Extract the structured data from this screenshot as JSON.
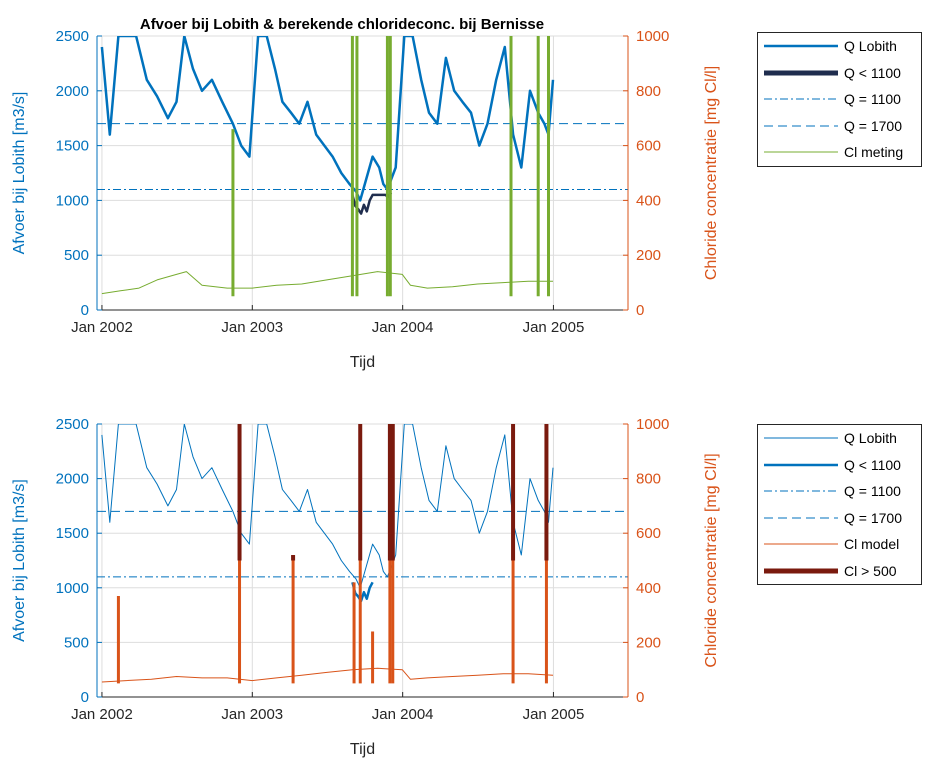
{
  "figure_title": "Afvoer bij Lobith & berekende chlorideconc. bij Bernisse",
  "colors": {
    "q_lobith": "#0072BD",
    "q_low": "#1F2D4E",
    "cl_meting": "#77AC30",
    "cl_model": "#D95319",
    "cl_high": "#7A1A0E",
    "grid": "#DDDDDD",
    "axis": "#262626"
  },
  "chart_data": [
    {
      "type": "line",
      "title": "Afvoer bij Lobith & berekende chlorideconc. bij Bernisse",
      "xlabel": "Tijd",
      "ylabel_left": "Afvoer bij Lobith [m3/s]",
      "ylabel_right": "Chloride concentratie [mg Cl/l]",
      "xlim": [
        "2001-12-20",
        "2005-07-01"
      ],
      "ylim_left": [
        0,
        2500
      ],
      "ylim_right": [
        0,
        1000
      ],
      "x_ticks": [
        "Jan 2002",
        "Jan 2003",
        "Jan 2004",
        "Jan 2005"
      ],
      "y_ticks_left": [
        "0",
        "500",
        "1000",
        "1500",
        "2000",
        "2500"
      ],
      "y_ticks_right": [
        "0",
        "200",
        "400",
        "600",
        "800",
        "1000"
      ],
      "grid": true,
      "legend_position": "outside-right",
      "series": [
        {
          "name": "Q Lobith",
          "axis": "left",
          "style": "solid-thick",
          "x": [
            "2002-01-01",
            "2002-01-20",
            "2002-02-10",
            "2002-03-01",
            "2002-03-25",
            "2002-04-20",
            "2002-05-15",
            "2002-06-10",
            "2002-07-01",
            "2002-07-20",
            "2002-08-10",
            "2002-09-01",
            "2002-09-25",
            "2002-10-20",
            "2002-11-15",
            "2002-12-05",
            "2002-12-25",
            "2003-01-15",
            "2003-02-05",
            "2003-02-25",
            "2003-03-15",
            "2003-04-05",
            "2003-04-25",
            "2003-05-15",
            "2003-06-05",
            "2003-06-25",
            "2003-07-15",
            "2003-08-05",
            "2003-08-25",
            "2003-09-10",
            "2003-09-20",
            "2003-10-05",
            "2003-10-20",
            "2003-11-05",
            "2003-11-15",
            "2003-11-25",
            "2003-12-05",
            "2003-12-15",
            "2004-01-05",
            "2004-01-25",
            "2004-02-15",
            "2004-03-05",
            "2004-03-25",
            "2004-04-15",
            "2004-05-05",
            "2004-05-25",
            "2004-06-15",
            "2004-07-05",
            "2004-07-25",
            "2004-08-15",
            "2004-09-05",
            "2004-09-25",
            "2004-10-15",
            "2004-11-05",
            "2004-11-25",
            "2004-12-10",
            "2004-12-20",
            "2004-12-31"
          ],
          "y": [
            2400,
            1600,
            2500,
            2500,
            2500,
            2100,
            1950,
            1750,
            1900,
            2500,
            2200,
            2000,
            2100,
            1900,
            1700,
            1500,
            1400,
            2500,
            2500,
            2200,
            1900,
            1800,
            1700,
            1900,
            1600,
            1500,
            1400,
            1250,
            1150,
            1080,
            1000,
            1200,
            1400,
            1300,
            1150,
            1100,
            1200,
            1300,
            2500,
            2500,
            2100,
            1800,
            1700,
            2300,
            2000,
            1900,
            1800,
            1500,
            1700,
            2100,
            2400,
            1600,
            1300,
            2000,
            1800,
            1700,
            1600,
            2100
          ]
        },
        {
          "name": "Q < 1100",
          "axis": "left",
          "style": "solid-thick",
          "x": [
            "2003-09-01",
            "2003-09-08",
            "2003-09-15",
            "2003-09-22",
            "2003-09-29",
            "2003-10-06",
            "2003-10-13",
            "2003-10-20",
            "2003-11-20",
            "2003-11-27",
            "2003-12-04"
          ],
          "y": [
            1050,
            950,
            920,
            880,
            960,
            900,
            1000,
            1050,
            1050,
            1030,
            1070
          ]
        },
        {
          "name": "Q = 1100",
          "axis": "left",
          "style": "dashdot",
          "value": 1100
        },
        {
          "name": "Q = 1700",
          "axis": "left",
          "style": "dashed",
          "value": 1700
        },
        {
          "name": "Cl meting",
          "axis": "right",
          "style": "solid",
          "x": [
            "2002-01-01",
            "2002-02-15",
            "2002-04-01",
            "2002-05-15",
            "2002-07-01",
            "2002-07-25",
            "2002-09-01",
            "2002-11-01",
            "2003-01-01",
            "2003-03-01",
            "2003-05-01",
            "2003-07-01",
            "2003-09-01",
            "2003-11-01",
            "2003-12-31",
            "2004-01-20",
            "2004-03-01",
            "2004-05-01",
            "2004-07-01",
            "2004-09-01",
            "2004-11-01",
            "2004-12-31"
          ],
          "y": [
            60,
            70,
            80,
            110,
            130,
            140,
            90,
            80,
            80,
            90,
            95,
            110,
            125,
            140,
            130,
            90,
            80,
            85,
            95,
            100,
            105,
            105
          ],
          "spikes": [
            {
              "x": "2002-11-15",
              "y": 660
            },
            {
              "x": "2003-09-01",
              "y": 1000
            },
            {
              "x": "2003-09-12",
              "y": 1000
            },
            {
              "x": "2003-11-25",
              "y": 1000
            },
            {
              "x": "2003-12-02",
              "y": 1000
            },
            {
              "x": "2004-09-20",
              "y": 1000
            },
            {
              "x": "2004-11-25",
              "y": 1000
            },
            {
              "x": "2004-12-20",
              "y": 1000
            }
          ]
        }
      ]
    },
    {
      "type": "line",
      "title": "",
      "xlabel": "Tijd",
      "ylabel_left": "Afvoer bij Lobith [m3/s]",
      "ylabel_right": "Chloride concentratie [mg Cl/l]",
      "xlim": [
        "2001-12-20",
        "2005-07-01"
      ],
      "ylim_left": [
        0,
        2500
      ],
      "ylim_right": [
        0,
        1000
      ],
      "x_ticks": [
        "Jan 2002",
        "Jan 2003",
        "Jan 2004",
        "Jan 2005"
      ],
      "y_ticks_left": [
        "0",
        "500",
        "1000",
        "1500",
        "2000",
        "2500"
      ],
      "y_ticks_right": [
        "0",
        "200",
        "400",
        "600",
        "800",
        "1000"
      ],
      "grid": true,
      "legend_position": "outside-right",
      "series": [
        {
          "name": "Q Lobith",
          "axis": "left",
          "style": "solid-thin",
          "same_as": "Q Lobith (top panel)"
        },
        {
          "name": "Q < 1100",
          "axis": "left",
          "style": "solid-thick",
          "x": [
            "2003-09-01",
            "2003-09-08",
            "2003-09-15",
            "2003-09-22",
            "2003-09-29",
            "2003-10-06",
            "2003-10-13",
            "2003-10-20"
          ],
          "y": [
            1050,
            950,
            920,
            880,
            960,
            900,
            1000,
            1050
          ]
        },
        {
          "name": "Q = 1100",
          "axis": "left",
          "style": "dashdot",
          "value": 1100
        },
        {
          "name": "Q = 1700",
          "axis": "left",
          "style": "dashed",
          "value": 1700
        },
        {
          "name": "Cl model",
          "axis": "right",
          "style": "solid",
          "x": [
            "2002-01-01",
            "2002-03-01",
            "2002-05-01",
            "2002-07-01",
            "2002-09-01",
            "2002-11-01",
            "2003-01-01",
            "2003-03-01",
            "2003-05-01",
            "2003-07-01",
            "2003-09-01",
            "2003-11-01",
            "2003-12-31",
            "2004-01-20",
            "2004-03-01",
            "2004-05-01",
            "2004-07-01",
            "2004-09-01",
            "2004-11-01",
            "2004-12-31"
          ],
          "y": [
            55,
            60,
            65,
            75,
            70,
            70,
            60,
            70,
            80,
            90,
            100,
            105,
            100,
            65,
            70,
            75,
            80,
            85,
            85,
            80
          ],
          "spikes": [
            {
              "x": "2002-02-10",
              "y": 370
            },
            {
              "x": "2002-12-01",
              "y": 1000
            },
            {
              "x": "2003-04-10",
              "y": 520
            },
            {
              "x": "2003-09-05",
              "y": 420
            },
            {
              "x": "2003-09-20",
              "y": 1000
            },
            {
              "x": "2003-10-20",
              "y": 240
            },
            {
              "x": "2003-12-01",
              "y": 1000
            },
            {
              "x": "2003-12-08",
              "y": 1000
            },
            {
              "x": "2004-09-25",
              "y": 1000
            },
            {
              "x": "2004-12-15",
              "y": 1000
            }
          ]
        },
        {
          "name": "Cl > 500",
          "axis": "right",
          "style": "solid-thick",
          "segments": [
            {
              "x": "2002-12-01",
              "y_from": 500,
              "y_to": 1000
            },
            {
              "x": "2003-04-10",
              "y_from": 500,
              "y_to": 520
            },
            {
              "x": "2003-09-20",
              "y_from": 500,
              "y_to": 1000
            },
            {
              "x": "2003-12-01",
              "y_from": 500,
              "y_to": 1000
            },
            {
              "x": "2003-12-08",
              "y_from": 500,
              "y_to": 1000
            },
            {
              "x": "2004-09-25",
              "y_from": 500,
              "y_to": 1000
            },
            {
              "x": "2004-12-15",
              "y_from": 500,
              "y_to": 1000
            }
          ]
        }
      ]
    }
  ],
  "legends": [
    {
      "items": [
        {
          "label": "Q Lobith",
          "style": "solid-thick",
          "color_key": "q_lobith"
        },
        {
          "label": "Q < 1100",
          "style": "solid-xthick",
          "color_key": "q_low"
        },
        {
          "label": "Q = 1100",
          "style": "dashdot",
          "color_key": "q_lobith"
        },
        {
          "label": "Q = 1700",
          "style": "dashed",
          "color_key": "q_lobith"
        },
        {
          "label": "Cl meting",
          "style": "solid",
          "color_key": "cl_meting"
        }
      ]
    },
    {
      "items": [
        {
          "label": "Q Lobith",
          "style": "solid",
          "color_key": "q_lobith"
        },
        {
          "label": "Q < 1100",
          "style": "solid-thick",
          "color_key": "q_lobith"
        },
        {
          "label": "Q = 1100",
          "style": "dashdot",
          "color_key": "q_lobith"
        },
        {
          "label": "Q = 1700",
          "style": "dashed",
          "color_key": "q_lobith"
        },
        {
          "label": "Cl model",
          "style": "solid",
          "color_key": "cl_model"
        },
        {
          "label": "Cl > 500",
          "style": "solid-xthick",
          "color_key": "cl_high"
        }
      ]
    }
  ]
}
